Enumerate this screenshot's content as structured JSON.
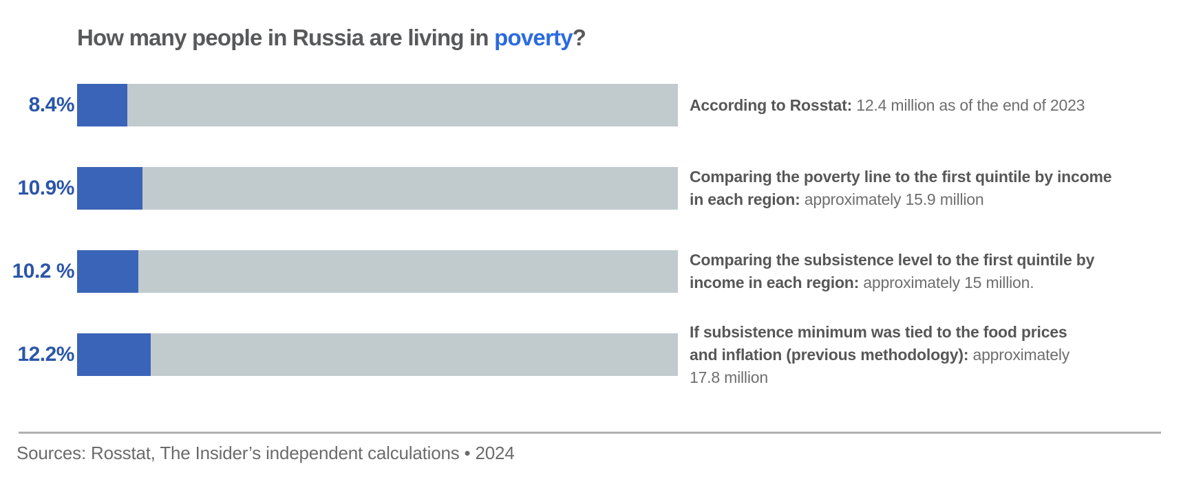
{
  "title": {
    "prefix": "How many people in Russia are living in ",
    "highlight": "poverty",
    "suffix": "?"
  },
  "chart_data": {
    "type": "bar",
    "orientation": "horizontal",
    "title": "How many people in Russia are living in poverty?",
    "xlabel": "",
    "ylabel": "",
    "unit": "percent of population",
    "xlim": [
      0,
      100
    ],
    "grid": false,
    "legend": "none",
    "categories": [
      "According to Rosstat: 12.4 million as of the end of 2023",
      "Comparing the poverty line to the first quintile by income in each region: approximately 15.9 million",
      "Comparing the subsistence level to the first quintile by income in each region: approximately 15 million.",
      "If subsistence minimum was tied to the food prices and inflation (previous methodology): approximately 17.8 million"
    ],
    "values": [
      8.4,
      10.9,
      10.2,
      12.2
    ],
    "colors": {
      "fill": "#3a64b8",
      "track": "#c1cbce",
      "value_label": "#2b56a8",
      "title": "#58595b",
      "accent": "#2b6be0"
    },
    "bars": [
      {
        "value": 8.4,
        "value_label": "8.4%",
        "description": [
          [
            {
              "t": "According to Rosstat:",
              "b": true
            },
            {
              "t": " 12.4 million as of the end of 2023",
              "b": false
            }
          ]
        ]
      },
      {
        "value": 10.9,
        "value_label": "10.9%",
        "description": [
          [
            {
              "t": "Comparing the poverty line to the first quintile by income",
              "b": true
            }
          ],
          [
            {
              "t": "in each region:",
              "b": true
            },
            {
              "t": " approximately 15.9 million",
              "b": false
            }
          ]
        ]
      },
      {
        "value": 10.2,
        "value_label": "10.2 %",
        "description": [
          [
            {
              "t": "Comparing the subsistence level to the first quintile by",
              "b": true
            }
          ],
          [
            {
              "t": "income in each region:",
              "b": true
            },
            {
              "t": " approximately 15 million.",
              "b": false
            }
          ]
        ]
      },
      {
        "value": 12.2,
        "value_label": "12.2%",
        "description": [
          [
            {
              "t": "If subsistence minimum was tied to the food prices",
              "b": true
            }
          ],
          [
            {
              "t": "and inflation (previous methodology):",
              "b": true
            },
            {
              "t": " approximately",
              "b": false
            }
          ],
          [
            {
              "t": "17.8 million",
              "b": false
            }
          ]
        ]
      }
    ]
  },
  "footer": {
    "source": "Sources: Rosstat, The Insider’s independent calculations • 2024"
  }
}
